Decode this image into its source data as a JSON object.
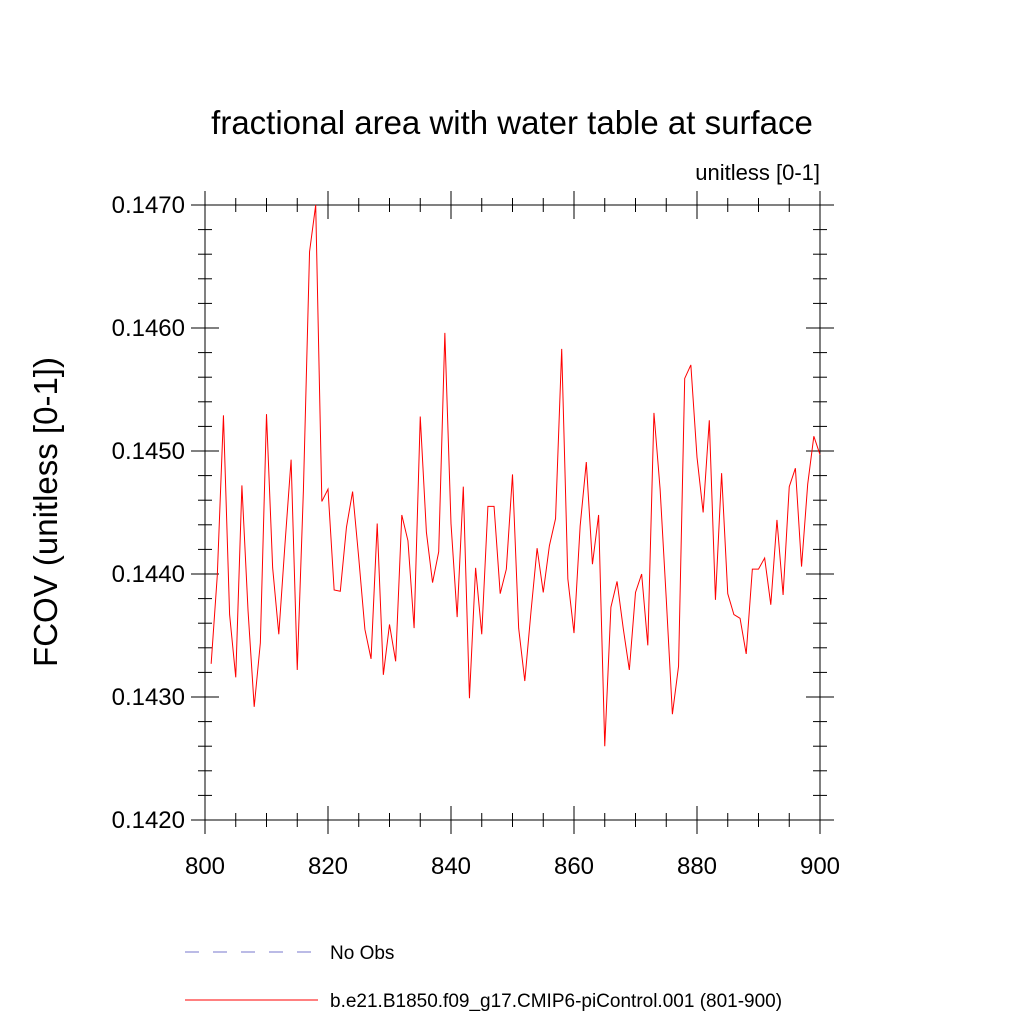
{
  "chart_data": {
    "type": "line",
    "title": "fractional area with water table at surface",
    "units_label": "unitless [0-1]",
    "ylabel": "FCOV  (unitless [0-1])",
    "xlabel": "",
    "xlim": [
      800,
      900
    ],
    "ylim": [
      0.142,
      0.147
    ],
    "x_ticks": [
      800,
      820,
      840,
      860,
      880,
      900
    ],
    "x_tick_labels": [
      "800",
      "820",
      "840",
      "860",
      "880",
      "900"
    ],
    "y_ticks": [
      0.142,
      0.143,
      0.144,
      0.145,
      0.146,
      0.147
    ],
    "y_tick_labels": [
      "0.1420",
      "0.1430",
      "0.1440",
      "0.1450",
      "0.1460",
      "0.1470"
    ],
    "series": [
      {
        "name": "b.e21.B1850.f09_g17.CMIP6-piControl.001 (801-900)",
        "color": "#ff0000",
        "style": "solid",
        "x": [
          801,
          802,
          803,
          804,
          805,
          806,
          807,
          808,
          809,
          810,
          811,
          812,
          813,
          814,
          815,
          816,
          817,
          818,
          819,
          820,
          821,
          822,
          823,
          824,
          825,
          826,
          827,
          828,
          829,
          830,
          831,
          832,
          833,
          834,
          835,
          836,
          837,
          838,
          839,
          840,
          841,
          842,
          843,
          844,
          845,
          846,
          847,
          848,
          849,
          850,
          851,
          852,
          853,
          854,
          855,
          856,
          857,
          858,
          859,
          860,
          861,
          862,
          863,
          864,
          865,
          866,
          867,
          868,
          869,
          870,
          871,
          872,
          873,
          874,
          875,
          876,
          877,
          878,
          879,
          880,
          881,
          882,
          883,
          884,
          885,
          886,
          887,
          888,
          889,
          890,
          891,
          892,
          893,
          894,
          895,
          896,
          897,
          898,
          899,
          900
        ],
        "values": [
          0.14327,
          0.14399,
          0.14529,
          0.14367,
          0.14316,
          0.14472,
          0.1437,
          0.14292,
          0.14344,
          0.1453,
          0.14405,
          0.14351,
          0.14424,
          0.14493,
          0.14322,
          0.14468,
          0.14662,
          0.147,
          0.14459,
          0.14469,
          0.14387,
          0.14386,
          0.14438,
          0.14467,
          0.14413,
          0.14355,
          0.14331,
          0.14441,
          0.14318,
          0.14359,
          0.14329,
          0.14448,
          0.14427,
          0.14356,
          0.14528,
          0.14434,
          0.14393,
          0.14418,
          0.14596,
          0.14441,
          0.14365,
          0.14471,
          0.14299,
          0.14405,
          0.14351,
          0.14455,
          0.14455,
          0.14384,
          0.14404,
          0.14481,
          0.14356,
          0.14313,
          0.14369,
          0.14421,
          0.14385,
          0.14423,
          0.14445,
          0.14583,
          0.14396,
          0.14352,
          0.14439,
          0.14491,
          0.14408,
          0.14448,
          0.1426,
          0.14373,
          0.14394,
          0.14356,
          0.14322,
          0.14385,
          0.144,
          0.14342,
          0.14531,
          0.14469,
          0.1438,
          0.14286,
          0.14325,
          0.14559,
          0.1457,
          0.14495,
          0.1445,
          0.14525,
          0.14379,
          0.14482,
          0.14384,
          0.14367,
          0.14364,
          0.14335,
          0.14404,
          0.14404,
          0.14413,
          0.14375,
          0.14444,
          0.14383,
          0.14471,
          0.14486,
          0.14406,
          0.14473,
          0.14512,
          0.14497
        ]
      },
      {
        "name": "No Obs",
        "color": "#7777cc",
        "style": "dashed",
        "x": [],
        "values": []
      }
    ],
    "grid": false,
    "legend_position": "bottom-left"
  }
}
